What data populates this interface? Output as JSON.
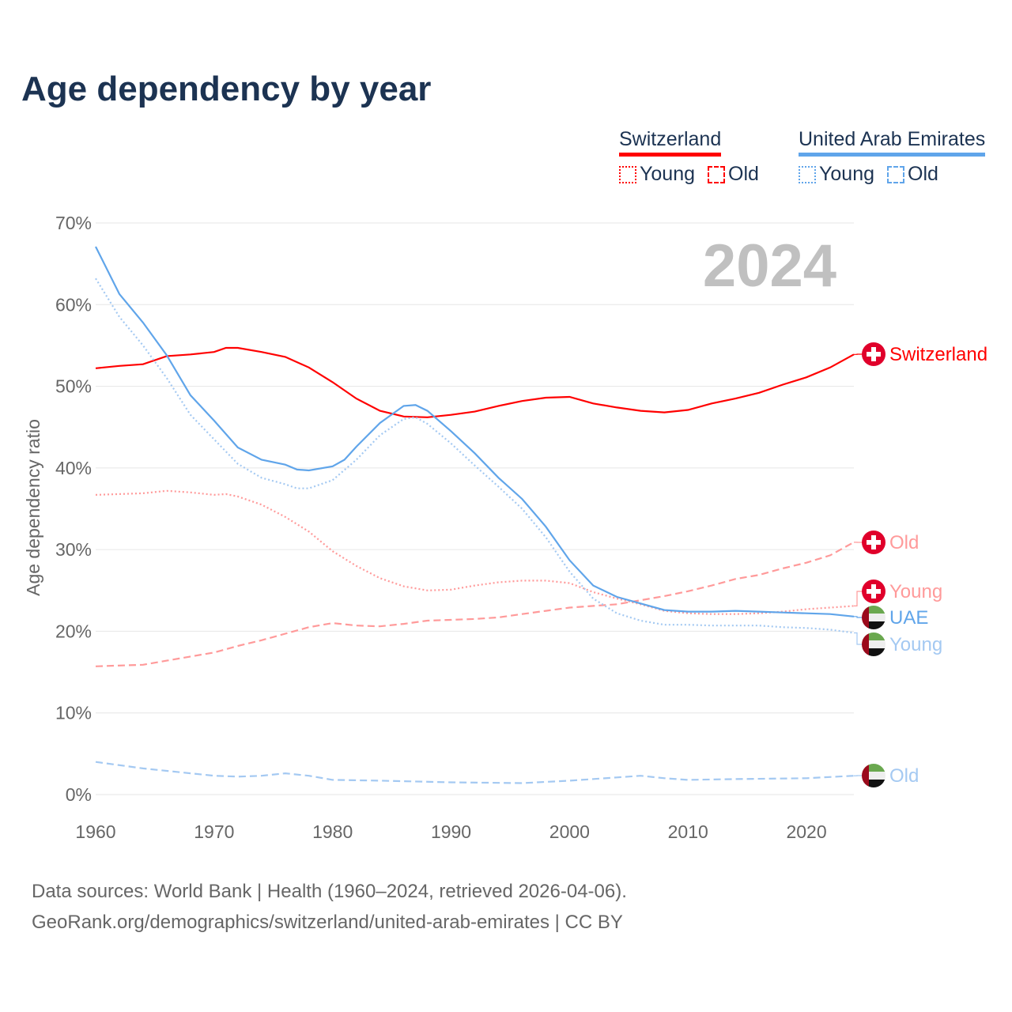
{
  "title": "Age dependency by year",
  "legend": {
    "groups": [
      {
        "name": "Switzerland",
        "color": "#ff0000",
        "items": [
          {
            "label": "Young",
            "style": "dotted"
          },
          {
            "label": "Old",
            "style": "dashed"
          }
        ]
      },
      {
        "name": "United Arab Emirates",
        "color": "#60a5ea",
        "items": [
          {
            "label": "Young",
            "style": "dotted"
          },
          {
            "label": "Old",
            "style": "dashed"
          }
        ]
      }
    ]
  },
  "year_watermark": "2024",
  "footer": {
    "line1": "Data sources: World Bank | Health (1960–2024, retrieved 2026-04-06).",
    "line2": "GeoRank.org/demographics/switzerland/united-arab-emirates | CC BY"
  },
  "chart_data": {
    "type": "line",
    "title": "Age dependency by year",
    "xlabel": "",
    "ylabel": "Age dependency ratio",
    "xlim": [
      1960,
      2024
    ],
    "ylim": [
      0,
      70
    ],
    "x_ticks": [
      "1960",
      "1970",
      "1980",
      "1990",
      "2000",
      "2010",
      "2020"
    ],
    "y_ticks": [
      "0%",
      "10%",
      "20%",
      "30%",
      "40%",
      "50%",
      "60%",
      "70%"
    ],
    "grid": true,
    "series": [
      {
        "name": "Switzerland",
        "end_label": "Switzerland",
        "color": "#ff0000",
        "style": "solid",
        "flag": "ch",
        "x": [
          1960,
          1962,
          1964,
          1966,
          1968,
          1970,
          1971,
          1972,
          1974,
          1976,
          1978,
          1980,
          1982,
          1984,
          1986,
          1988,
          1990,
          1992,
          1994,
          1996,
          1998,
          2000,
          2002,
          2004,
          2006,
          2008,
          2010,
          2012,
          2014,
          2016,
          2018,
          2020,
          2022,
          2024
        ],
        "y": [
          52.2,
          52.5,
          52.7,
          53.7,
          53.9,
          54.2,
          54.7,
          54.7,
          54.2,
          53.6,
          52.3,
          50.5,
          48.5,
          47.0,
          46.3,
          46.2,
          46.5,
          46.9,
          47.6,
          48.2,
          48.6,
          48.7,
          47.9,
          47.4,
          47.0,
          46.8,
          47.1,
          47.9,
          48.5,
          49.2,
          50.2,
          51.1,
          52.3,
          53.9
        ]
      },
      {
        "name": "Switzerland Old",
        "end_label": "Old",
        "color": "#ff9a9a",
        "style": "dashed",
        "flag": "ch",
        "x": [
          1960,
          1964,
          1966,
          1968,
          1970,
          1972,
          1974,
          1976,
          1978,
          1980,
          1982,
          1984,
          1986,
          1988,
          1990,
          1992,
          1994,
          1996,
          1998,
          2000,
          2002,
          2004,
          2006,
          2008,
          2010,
          2012,
          2014,
          2016,
          2018,
          2020,
          2022,
          2024
        ],
        "y": [
          15.7,
          15.9,
          16.4,
          16.9,
          17.4,
          18.2,
          18.9,
          19.7,
          20.5,
          21.0,
          20.7,
          20.6,
          20.9,
          21.3,
          21.4,
          21.5,
          21.7,
          22.1,
          22.5,
          22.9,
          23.1,
          23.3,
          23.8,
          24.3,
          24.9,
          25.6,
          26.4,
          26.9,
          27.7,
          28.4,
          29.3,
          30.9
        ]
      },
      {
        "name": "Switzerland Young",
        "end_label": "Young",
        "color": "#ff9a9a",
        "style": "dotted",
        "flag": "ch",
        "x": [
          1960,
          1962,
          1964,
          1966,
          1968,
          1970,
          1971,
          1972,
          1974,
          1976,
          1978,
          1980,
          1982,
          1984,
          1986,
          1988,
          1990,
          1992,
          1994,
          1996,
          1998,
          2000,
          2002,
          2004,
          2006,
          2008,
          2010,
          2012,
          2014,
          2016,
          2018,
          2020,
          2022,
          2024
        ],
        "y": [
          36.7,
          36.8,
          36.9,
          37.2,
          37.0,
          36.7,
          36.8,
          36.5,
          35.5,
          34.0,
          32.2,
          29.8,
          28.0,
          26.5,
          25.5,
          25.0,
          25.1,
          25.6,
          26.0,
          26.2,
          26.2,
          25.9,
          24.8,
          24.0,
          23.3,
          22.5,
          22.2,
          22.1,
          22.1,
          22.2,
          22.4,
          22.7,
          22.9,
          23.1
        ]
      },
      {
        "name": "United Arab Emirates",
        "end_label": "UAE",
        "color": "#60a5ea",
        "style": "solid",
        "flag": "ae",
        "x": [
          1960,
          1962,
          1964,
          1966,
          1968,
          1970,
          1972,
          1974,
          1976,
          1977,
          1978,
          1980,
          1981,
          1982,
          1984,
          1986,
          1987,
          1988,
          1990,
          1992,
          1994,
          1996,
          1998,
          2000,
          2002,
          2004,
          2006,
          2008,
          2010,
          2012,
          2014,
          2016,
          2018,
          2020,
          2022,
          2024
        ],
        "y": [
          67.1,
          61.3,
          57.8,
          53.8,
          48.9,
          45.8,
          42.5,
          41.0,
          40.4,
          39.8,
          39.7,
          40.2,
          41.0,
          42.6,
          45.5,
          47.6,
          47.7,
          47.0,
          44.5,
          41.8,
          38.8,
          36.2,
          32.8,
          28.7,
          25.6,
          24.2,
          23.4,
          22.6,
          22.4,
          22.4,
          22.5,
          22.4,
          22.3,
          22.2,
          22.1,
          21.8
        ]
      },
      {
        "name": "United Arab Emirates Young",
        "end_label": "Young",
        "color": "#a4c9f2",
        "style": "dotted",
        "flag": "ae",
        "x": [
          1960,
          1962,
          1964,
          1966,
          1968,
          1970,
          1972,
          1974,
          1976,
          1977,
          1978,
          1980,
          1982,
          1984,
          1986,
          1987,
          1988,
          1990,
          1992,
          1994,
          1996,
          1998,
          2000,
          2002,
          2004,
          2006,
          2008,
          2010,
          2012,
          2014,
          2016,
          2018,
          2020,
          2022,
          2024
        ],
        "y": [
          63.2,
          58.5,
          55.0,
          51.0,
          46.5,
          43.5,
          40.5,
          38.8,
          38.0,
          37.5,
          37.5,
          38.5,
          41.0,
          44.0,
          46.0,
          46.2,
          45.4,
          43.0,
          40.3,
          37.7,
          35.0,
          31.5,
          27.3,
          24.0,
          22.2,
          21.3,
          20.8,
          20.8,
          20.7,
          20.7,
          20.7,
          20.5,
          20.4,
          20.2,
          19.8
        ]
      },
      {
        "name": "United Arab Emirates Old",
        "end_label": "Old",
        "color": "#a4c9f2",
        "style": "dashed",
        "flag": "ae",
        "x": [
          1960,
          1964,
          1968,
          1970,
          1972,
          1974,
          1976,
          1978,
          1980,
          1984,
          1990,
          1996,
          2000,
          2004,
          2006,
          2008,
          2010,
          2014,
          2020,
          2024
        ],
        "y": [
          4.0,
          3.2,
          2.6,
          2.3,
          2.2,
          2.3,
          2.6,
          2.3,
          1.8,
          1.7,
          1.5,
          1.4,
          1.7,
          2.1,
          2.3,
          2.0,
          1.8,
          1.9,
          2.0,
          2.3
        ]
      }
    ]
  }
}
